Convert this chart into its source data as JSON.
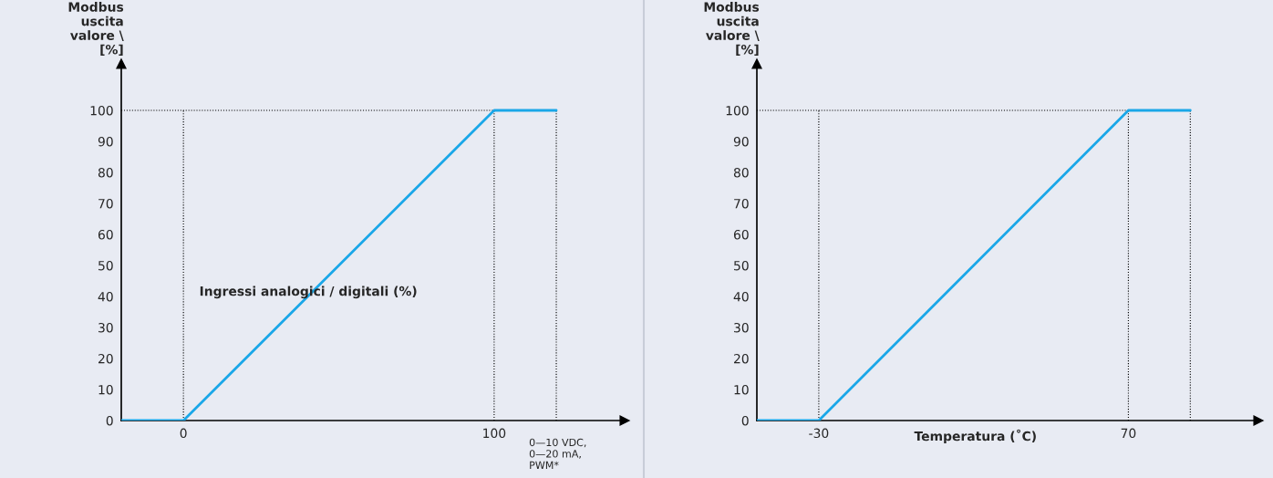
{
  "chart_data": [
    {
      "type": "line",
      "x": [
        -20,
        0,
        100,
        120
      ],
      "values": [
        0,
        0,
        100,
        100
      ],
      "color": "#1aa7e8",
      "ylabel": "Modbus\nuscita\nvalore \\\n[%]",
      "xlabel": "0—10 VDC,\n0—20 mA,\nPWM*",
      "annotations": [
        "Ingressi analogici / digitali (%)"
      ],
      "xlim": [
        -20,
        142
      ],
      "xticks": [
        0,
        100
      ],
      "ylim": [
        0,
        115
      ],
      "yticks": [
        0,
        10,
        20,
        30,
        40,
        50,
        60,
        70,
        80,
        90,
        100
      ],
      "ref_lines": [
        {
          "axis": "x",
          "value": 0,
          "color": "#000000",
          "line_style": "dotted"
        },
        {
          "axis": "x",
          "value": 100,
          "color": "#000000",
          "line_style": "dotted"
        },
        {
          "axis": "x",
          "value": 120,
          "color": "#000000",
          "line_style": "dotted"
        },
        {
          "axis": "y",
          "value": 100,
          "color": "#000000",
          "line_style": "dotted"
        }
      ],
      "line_style": "solid"
    },
    {
      "type": "line",
      "x": [
        -50,
        -30,
        70,
        90
      ],
      "values": [
        0,
        0,
        100,
        100
      ],
      "color": "#1aa7e8",
      "ylabel": "Modbus\nuscita\nvalore \\\n[%]",
      "xlabel": "Temperatura (˚C)",
      "xlim": [
        -50,
        112
      ],
      "xticks": [
        -30,
        70
      ],
      "ylim": [
        0,
        115
      ],
      "yticks": [
        0,
        10,
        20,
        30,
        40,
        50,
        60,
        70,
        80,
        90,
        100
      ],
      "ref_lines": [
        {
          "axis": "x",
          "value": -30,
          "color": "#000000",
          "line_style": "dotted"
        },
        {
          "axis": "x",
          "value": 70,
          "color": "#000000",
          "line_style": "dotted"
        },
        {
          "axis": "x",
          "value": 90,
          "color": "#000000",
          "line_style": "dotted"
        },
        {
          "axis": "y",
          "value": 100,
          "color": "#000000",
          "line_style": "dotted"
        }
      ],
      "line_style": "solid"
    }
  ]
}
